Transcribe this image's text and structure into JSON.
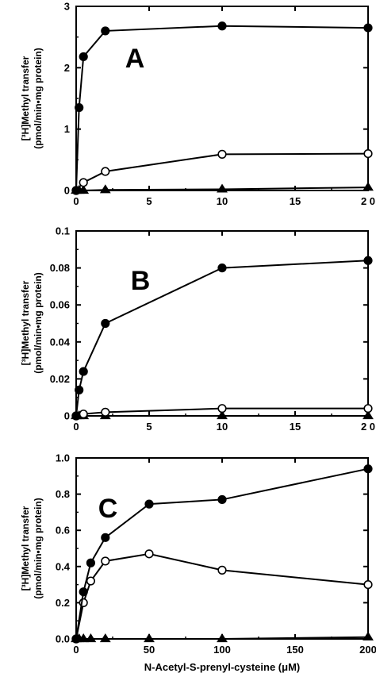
{
  "chart_data": [
    {
      "type": "line",
      "panel_label": "A",
      "ylabel_line1": "[³H]Methyl transfer",
      "ylabel_line2": "(pmol/min•mg protein)",
      "xlabel": "",
      "xlim": [
        0,
        20
      ],
      "ylim": [
        0,
        3
      ],
      "xticks": [
        0,
        5,
        10,
        15,
        20
      ],
      "xtick_labels": [
        "0",
        "5",
        "10",
        "15",
        "2 0"
      ],
      "yticks": [
        0,
        1,
        2,
        3
      ],
      "ytick_labels": [
        "0",
        "1",
        "2",
        "3"
      ],
      "grid": false,
      "series": [
        {
          "marker": "filled-circle",
          "x": [
            0,
            0.2,
            0.5,
            2,
            10,
            20
          ],
          "y": [
            0,
            1.35,
            2.18,
            2.6,
            2.68,
            2.65
          ]
        },
        {
          "marker": "open-circle",
          "x": [
            0,
            0.5,
            2,
            10,
            20
          ],
          "y": [
            0,
            0.13,
            0.31,
            0.59,
            0.6
          ]
        },
        {
          "marker": "filled-triangle",
          "x": [
            0,
            0.2,
            0.5,
            2,
            10,
            20
          ],
          "y": [
            0,
            0,
            0,
            0.01,
            0.02,
            0.05
          ]
        }
      ]
    },
    {
      "type": "line",
      "panel_label": "B",
      "ylabel_line1": "[³H]Methyl transfer",
      "ylabel_line2": "(pmol/min•mg protein)",
      "xlabel": "",
      "xlim": [
        0,
        20
      ],
      "ylim": [
        0,
        0.1
      ],
      "xticks": [
        0,
        5,
        10,
        15,
        20
      ],
      "xtick_labels": [
        "0",
        "5",
        "10",
        "15",
        "2 0"
      ],
      "yticks": [
        0,
        0.02,
        0.04,
        0.06,
        0.08,
        0.1
      ],
      "ytick_labels": [
        "0",
        "0.02",
        "0.04",
        "0.06",
        "0.08",
        "0.1"
      ],
      "grid": false,
      "series": [
        {
          "marker": "filled-circle",
          "x": [
            0,
            0.2,
            0.5,
            2,
            10,
            20
          ],
          "y": [
            0,
            0.014,
            0.024,
            0.05,
            0.08,
            0.084
          ]
        },
        {
          "marker": "open-circle",
          "x": [
            0,
            0.5,
            2,
            10,
            20
          ],
          "y": [
            0,
            0.001,
            0.002,
            0.004,
            0.004
          ]
        },
        {
          "marker": "filled-triangle",
          "x": [
            0,
            0.2,
            0.5,
            2,
            10,
            20
          ],
          "y": [
            0,
            0,
            0,
            0,
            0,
            0
          ]
        }
      ]
    },
    {
      "type": "line",
      "panel_label": "C",
      "ylabel_line1": "[³H]Methyl transfer",
      "ylabel_line2": "(pmol/min•mg protein)",
      "xlabel": "N-Acetyl-S-prenyl-cysteine  (μM)",
      "xlim": [
        0,
        200
      ],
      "ylim": [
        0,
        1.0
      ],
      "xticks": [
        0,
        50,
        100,
        150,
        200
      ],
      "xtick_labels": [
        "0",
        "50",
        "100",
        "150",
        "200"
      ],
      "yticks": [
        0,
        0.2,
        0.4,
        0.6,
        0.8,
        1.0
      ],
      "ytick_labels": [
        "0.0",
        "0.2",
        "0.4",
        "0.6",
        "0.8",
        "1.0"
      ],
      "grid": false,
      "series": [
        {
          "marker": "filled-circle",
          "x": [
            0,
            5,
            10,
            20,
            50,
            100,
            200
          ],
          "y": [
            0,
            0.26,
            0.42,
            0.56,
            0.745,
            0.77,
            0.94
          ]
        },
        {
          "marker": "open-circle",
          "x": [
            0,
            5,
            10,
            20,
            50,
            100,
            200
          ],
          "y": [
            0,
            0.2,
            0.32,
            0.43,
            0.47,
            0.38,
            0.3
          ]
        },
        {
          "marker": "filled-triangle",
          "x": [
            0,
            2,
            5,
            10,
            20,
            50,
            100,
            200
          ],
          "y": [
            0,
            0,
            0,
            0,
            0,
            0,
            0,
            0.01
          ]
        }
      ]
    }
  ]
}
